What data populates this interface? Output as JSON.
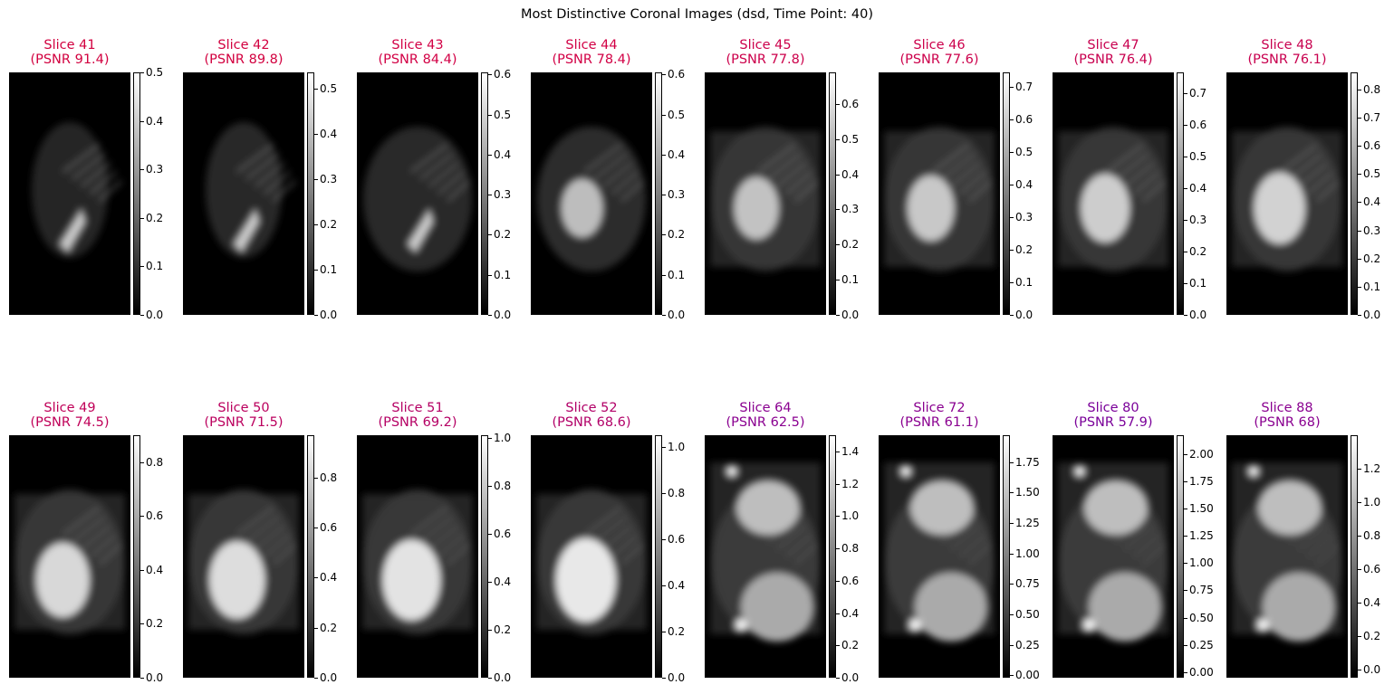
{
  "figure": {
    "title": "Most Distinctive Coronal Images (dsd, Time Point: 40)"
  },
  "colors": {
    "background": "#ffffff",
    "title_early": "#d2003f",
    "title_mid": "#b0006e",
    "title_late": "#7a0099"
  },
  "panels": [
    {
      "slice": "Slice 41",
      "psnr": "(PSNR 91.4)",
      "color": "#d2003f",
      "vmax": 0.5,
      "ticks": [
        "0.0",
        "0.1",
        "0.2",
        "0.3",
        "0.4",
        "0.5"
      ],
      "tick_values": [
        0,
        0.1,
        0.2,
        0.3,
        0.4,
        0.5
      ],
      "vmin": 0
    },
    {
      "slice": "Slice 42",
      "psnr": "(PSNR 89.8)",
      "color": "#d2003f",
      "vmax": 0.535,
      "ticks": [
        "0.0",
        "0.1",
        "0.2",
        "0.3",
        "0.4",
        "0.5"
      ],
      "tick_values": [
        0,
        0.1,
        0.2,
        0.3,
        0.4,
        0.5
      ],
      "vmin": 0
    },
    {
      "slice": "Slice 43",
      "psnr": "(PSNR 84.4)",
      "color": "#d20045",
      "vmax": 0.605,
      "ticks": [
        "0.0",
        "0.1",
        "0.2",
        "0.3",
        "0.4",
        "0.5",
        "0.6"
      ],
      "tick_values": [
        0,
        0.1,
        0.2,
        0.3,
        0.4,
        0.5,
        0.6
      ],
      "vmin": 0
    },
    {
      "slice": "Slice 44",
      "psnr": "(PSNR 78.4)",
      "color": "#d20045",
      "vmax": 0.605,
      "ticks": [
        "0.0",
        "0.1",
        "0.2",
        "0.3",
        "0.4",
        "0.5",
        "0.6"
      ],
      "tick_values": [
        0,
        0.1,
        0.2,
        0.3,
        0.4,
        0.5,
        0.6
      ],
      "vmin": 0
    },
    {
      "slice": "Slice 45",
      "psnr": "(PSNR 77.8)",
      "color": "#cc004b",
      "vmax": 0.69,
      "ticks": [
        "0.0",
        "0.1",
        "0.2",
        "0.3",
        "0.4",
        "0.5",
        "0.6"
      ],
      "tick_values": [
        0,
        0.1,
        0.2,
        0.3,
        0.4,
        0.5,
        0.6
      ],
      "vmin": 0
    },
    {
      "slice": "Slice 46",
      "psnr": "(PSNR 77.6)",
      "color": "#cc004b",
      "vmax": 0.745,
      "ticks": [
        "0.0",
        "0.1",
        "0.2",
        "0.3",
        "0.4",
        "0.5",
        "0.6",
        "0.7"
      ],
      "tick_values": [
        0,
        0.1,
        0.2,
        0.3,
        0.4,
        0.5,
        0.6,
        0.7
      ],
      "vmin": 0
    },
    {
      "slice": "Slice 47",
      "psnr": "(PSNR 76.4)",
      "color": "#c8004f",
      "vmax": 0.765,
      "ticks": [
        "0.0",
        "0.1",
        "0.2",
        "0.3",
        "0.4",
        "0.5",
        "0.6",
        "0.7"
      ],
      "tick_values": [
        0,
        0.1,
        0.2,
        0.3,
        0.4,
        0.5,
        0.6,
        0.7
      ],
      "vmin": 0
    },
    {
      "slice": "Slice 48",
      "psnr": "(PSNR 76.1)",
      "color": "#c8004f",
      "vmax": 0.86,
      "ticks": [
        "0.0",
        "0.1",
        "0.2",
        "0.3",
        "0.4",
        "0.5",
        "0.6",
        "0.7",
        "0.8"
      ],
      "tick_values": [
        0,
        0.1,
        0.2,
        0.3,
        0.4,
        0.5,
        0.6,
        0.7,
        0.8
      ],
      "vmin": 0
    },
    {
      "slice": "Slice 49",
      "psnr": "(PSNR 74.5)",
      "color": "#c00058",
      "vmax": 0.9,
      "ticks": [
        "0.0",
        "0.2",
        "0.4",
        "0.6",
        "0.8"
      ],
      "tick_values": [
        0,
        0.2,
        0.4,
        0.6,
        0.8
      ],
      "vmin": 0
    },
    {
      "slice": "Slice 50",
      "psnr": "(PSNR 71.5)",
      "color": "#bb005e",
      "vmax": 0.97,
      "ticks": [
        "0.0",
        "0.2",
        "0.4",
        "0.6",
        "0.8"
      ],
      "tick_values": [
        0,
        0.2,
        0.4,
        0.6,
        0.8
      ],
      "vmin": 0
    },
    {
      "slice": "Slice 51",
      "psnr": "(PSNR 69.2)",
      "color": "#b50064",
      "vmax": 1.01,
      "ticks": [
        "0.0",
        "0.2",
        "0.4",
        "0.6",
        "0.8",
        "1.0"
      ],
      "tick_values": [
        0,
        0.2,
        0.4,
        0.6,
        0.8,
        1.0
      ],
      "vmin": 0
    },
    {
      "slice": "Slice 52",
      "psnr": "(PSNR 68.6)",
      "color": "#b20068",
      "vmax": 1.05,
      "ticks": [
        "0.0",
        "0.2",
        "0.4",
        "0.6",
        "0.8",
        "1.0"
      ],
      "tick_values": [
        0,
        0.2,
        0.4,
        0.6,
        0.8,
        1.0
      ],
      "vmin": 0
    },
    {
      "slice": "Slice 64",
      "psnr": "(PSNR 62.5)",
      "color": "#8a0090",
      "vmax": 1.5,
      "ticks": [
        "0.0",
        "0.2",
        "0.4",
        "0.6",
        "0.8",
        "1.0",
        "1.2",
        "1.4"
      ],
      "tick_values": [
        0,
        0.2,
        0.4,
        0.6,
        0.8,
        1.0,
        1.2,
        1.4
      ],
      "vmin": 0
    },
    {
      "slice": "Slice 72",
      "psnr": "(PSNR 61.1)",
      "color": "#8a0090",
      "vmax": 1.97,
      "ticks": [
        "0.00",
        "0.25",
        "0.50",
        "0.75",
        "1.00",
        "1.25",
        "1.50",
        "1.75"
      ],
      "tick_values": [
        0,
        0.25,
        0.5,
        0.75,
        1.0,
        1.25,
        1.5,
        1.75
      ],
      "vmin": -0.02
    },
    {
      "slice": "Slice 80",
      "psnr": "(PSNR 57.9)",
      "color": "#7a0099",
      "vmax": 2.17,
      "ticks": [
        "0.00",
        "0.25",
        "0.50",
        "0.75",
        "1.00",
        "1.25",
        "1.50",
        "1.75",
        "2.00"
      ],
      "tick_values": [
        0,
        0.25,
        0.5,
        0.75,
        1.0,
        1.25,
        1.5,
        1.75,
        2.0
      ],
      "vmin": -0.05
    },
    {
      "slice": "Slice 88",
      "psnr": "(PSNR 68)",
      "color": "#8a0090",
      "vmax": 1.4,
      "ticks": [
        "0.0",
        "0.2",
        "0.4",
        "0.6",
        "0.8",
        "1.0",
        "1.2"
      ],
      "tick_values": [
        0,
        0.2,
        0.4,
        0.6,
        0.8,
        1.0,
        1.2
      ],
      "vmin": -0.05
    }
  ]
}
